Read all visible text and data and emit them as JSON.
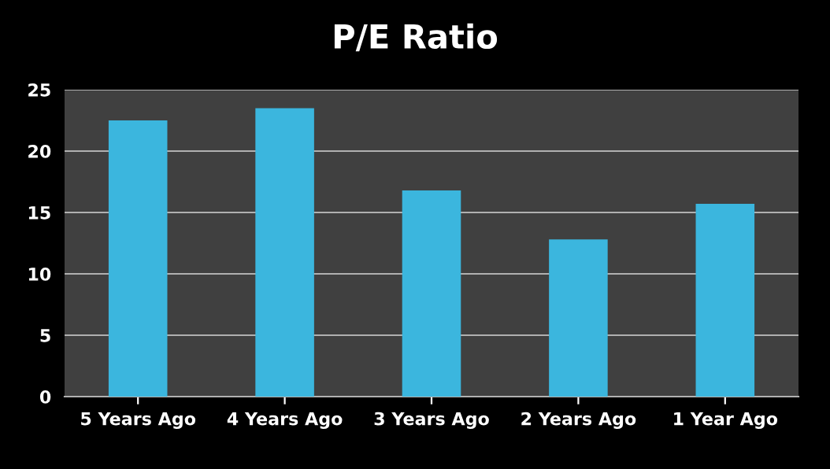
{
  "chart_data": {
    "type": "bar",
    "title": "P/E Ratio",
    "categories": [
      "5 Years Ago",
      "4 Years Ago",
      "3 Years Ago",
      "2 Years Ago",
      "1 Year Ago"
    ],
    "values": [
      22.5,
      23.5,
      16.8,
      12.8,
      15.7
    ],
    "color": "#3bb6de",
    "ylim": [
      0,
      25
    ],
    "yticks": [
      0,
      5,
      10,
      15,
      20,
      25
    ],
    "grid": "y",
    "legend": false
  }
}
